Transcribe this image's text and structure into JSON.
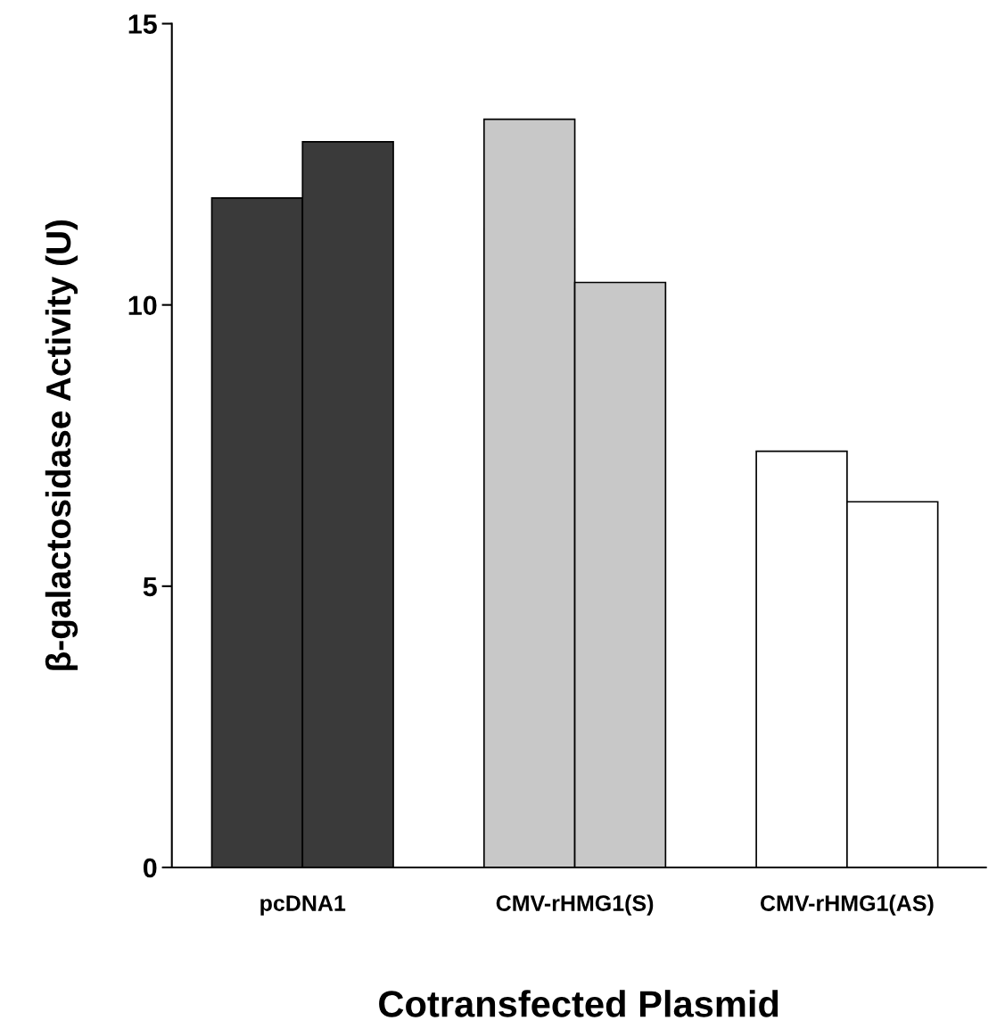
{
  "chart_data": {
    "type": "bar",
    "xlabel": "Cotransfected Plasmid",
    "ylabel": "β-galactosidase Activity (U)",
    "categories": [
      "pcDNA1",
      "CMV-rHMG1(S)",
      "CMV-rHMG1(AS)"
    ],
    "series": [
      {
        "colors": [
          "#3a3a3a",
          "#c8c8c8",
          "#ffffff"
        ],
        "values": [
          11.9,
          13.3,
          7.4
        ]
      },
      {
        "colors": [
          "#3a3a3a",
          "#c8c8c8",
          "#ffffff"
        ],
        "values": [
          12.9,
          10.4,
          6.5
        ]
      }
    ],
    "ylim": [
      0,
      15
    ],
    "yticks": [
      0,
      5,
      10,
      15
    ],
    "grid": false,
    "legend": false
  }
}
